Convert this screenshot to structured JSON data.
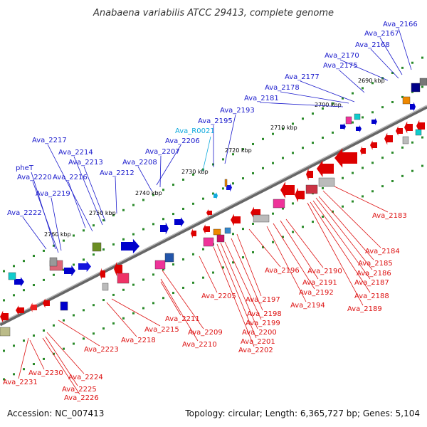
{
  "title": "Anabaena variabilis ATCC 29413, complete genome",
  "accession": "Accession: NC_007413",
  "summary": "Topology: circular; Length: 6,365,727 bp; Genes: 5,104",
  "colors": {
    "forward": "#1a1acc",
    "reverse": "#dd1111",
    "rna": "#11aadd",
    "backbone": "#888888",
    "tick": "#2a8a2a"
  },
  "kbp_ticks": [
    "2690 kbp",
    "2700 kbp",
    "2710 kbp",
    "2720 kbp",
    "2730 kbp",
    "2740 kbp",
    "2750 kbp",
    "2760 kbp"
  ],
  "forward_labels": [
    "Ava_2166",
    "Ava_2167",
    "Ava_2168",
    "Ava_2170",
    "Ava_2175",
    "Ava_2177",
    "Ava_2178",
    "Ava_2181",
    "Ava_2193",
    "Ava_2195",
    "Ava_2206",
    "Ava_2207",
    "Ava_2208",
    "Ava_2212",
    "Ava_2213",
    "Ava_2214",
    "Ava_2216",
    "Ava_2217",
    "pheT",
    "Ava_2220",
    "Ava_2219",
    "Ava_2222"
  ],
  "rna_labels": [
    "Ava_R0021"
  ],
  "reverse_labels": [
    "Ava_2183",
    "Ava_2184",
    "Ava_2185",
    "Ava_2186",
    "Ava_2187",
    "Ava_2188",
    "Ava_2189",
    "Ava_2190",
    "Ava_2191",
    "Ava_2192",
    "Ava_2194",
    "Ava_2196",
    "Ava_2197",
    "Ava_2198",
    "Ava_2199",
    "Ava_2200",
    "Ava_2201",
    "Ava_2202",
    "Ava_2205",
    "Ava_2209",
    "Ava_2210",
    "Ava_2211",
    "Ava_2215",
    "Ava_2218",
    "Ava_2223",
    "Ava_2224",
    "Ava_2225",
    "Ava_2226",
    "Ava_2230",
    "Ava_2231"
  ]
}
